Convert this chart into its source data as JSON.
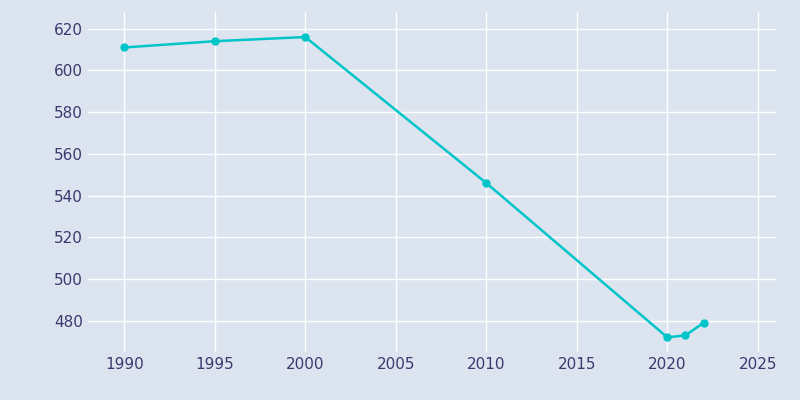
{
  "years": [
    1990,
    1995,
    2000,
    2010,
    2020,
    2021,
    2022
  ],
  "population": [
    611,
    614,
    616,
    546,
    472,
    473,
    479
  ],
  "line_color": "#00C5C8",
  "marker_color": "#00C5C8",
  "background_color": "#dce4f0",
  "grid_color": "#ffffff",
  "tick_color": "#3a3a6e",
  "xlim": [
    1988,
    2026
  ],
  "ylim": [
    465,
    628
  ],
  "yticks": [
    480,
    500,
    520,
    540,
    560,
    580,
    600,
    620
  ],
  "xticks": [
    1990,
    1995,
    2000,
    2005,
    2010,
    2015,
    2020,
    2025
  ],
  "linewidth": 1.8,
  "markersize": 5
}
